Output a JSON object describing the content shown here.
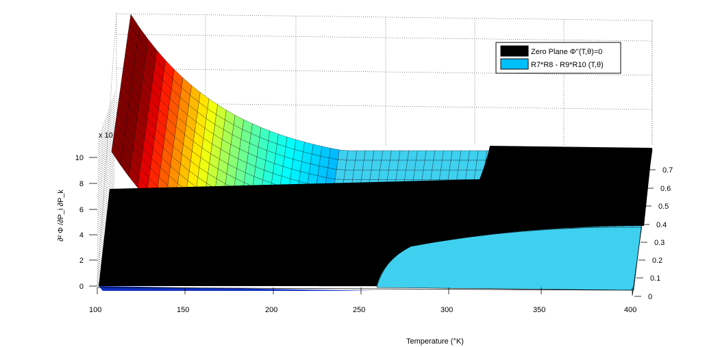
{
  "chart_data": {
    "type": "surface3d",
    "title": "",
    "xlabel": "Temperature (°K)",
    "ylabel": "∂² Φ /∂P_i ∂P_k",
    "zaxis_scale_note": "x 10",
    "xlim": [
      100,
      400
    ],
    "ylim": [
      0,
      10
    ],
    "theta_lim": [
      0,
      0.7
    ],
    "x_ticks": [
      "100",
      "150",
      "200",
      "250",
      "300",
      "350",
      "400"
    ],
    "y_ticks": [
      "0",
      "2",
      "4",
      "6",
      "8",
      "10"
    ],
    "theta_ticks": [
      "0",
      "0.1",
      "0.2",
      "0.3",
      "0.4",
      "0.5",
      "0.6",
      "0.7"
    ],
    "grid": true,
    "legend_position": "top-right",
    "series": [
      {
        "name": "Zero Plane Φ''(T,θ)=0",
        "color": "#000000",
        "kind": "plane",
        "value": 0
      },
      {
        "name": "R7*R8 - R9*R10 (T,θ)",
        "color": "#00bfff",
        "kind": "surface",
        "colormap": "jet"
      }
    ]
  }
}
